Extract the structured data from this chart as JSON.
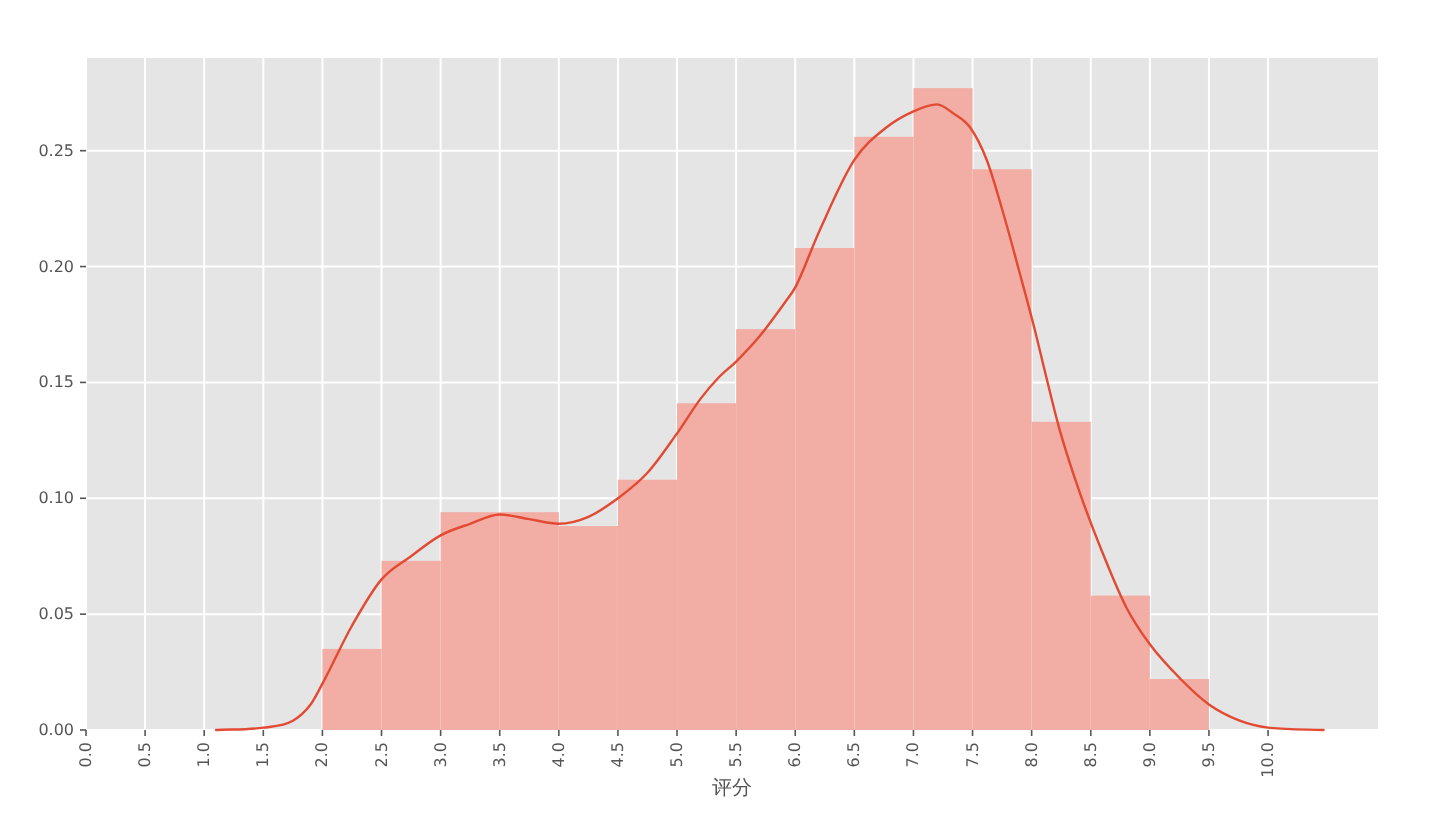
{
  "chart_data": {
    "type": "histogram",
    "xlabel": "评分",
    "xlim": [
      0,
      10.93
    ],
    "ylim": [
      0,
      0.29
    ],
    "xticks": [
      {
        "value": 0,
        "label": "0.0"
      },
      0.5,
      {
        "value": 1,
        "label": "1.0"
      },
      1.5,
      {
        "value": 2,
        "label": "2.0"
      },
      2.5,
      {
        "value": 3,
        "label": "3.0"
      },
      3.5,
      {
        "value": 4,
        "label": "4.0"
      },
      4.5,
      {
        "value": 5,
        "label": "5.0"
      },
      5.5,
      {
        "value": 6,
        "label": "6.0"
      },
      6.5,
      {
        "value": 7,
        "label": "7.0"
      },
      7.5,
      {
        "value": 8,
        "label": "8.0"
      },
      8.5,
      {
        "value": 9,
        "label": "9.0"
      },
      9.5,
      {
        "value": 10,
        "label": "10.0"
      }
    ],
    "yticks": [
      {
        "value": 0,
        "label": "0.00"
      },
      0.05,
      {
        "value": 0.1,
        "label": "0.10"
      },
      0.15,
      {
        "value": 0.2,
        "label": "0.20"
      },
      0.25
    ],
    "grid": true,
    "series": [
      {
        "type": "histogram",
        "color": "#f2aea5",
        "bins": [
          2.0,
          2.5,
          3.0,
          3.5,
          4.0,
          4.5,
          5.0,
          5.5,
          6.0,
          6.5,
          7.0,
          7.5,
          8.0,
          8.5,
          9.0,
          9.5
        ],
        "values": [
          0.035,
          0.073,
          0.094,
          0.094,
          0.088,
          0.108,
          0.141,
          0.173,
          0.208,
          0.256,
          0.277,
          0.242,
          0.133,
          0.058,
          0.022
        ]
      },
      {
        "type": "line",
        "color": "#e24a33",
        "x": [
          1.1,
          1.5,
          1.75,
          1.9,
          2.0,
          2.25,
          2.5,
          2.75,
          3.0,
          3.25,
          3.5,
          3.75,
          4.0,
          4.25,
          4.5,
          4.75,
          5.0,
          5.2,
          5.35,
          5.5,
          5.7,
          5.92,
          6.0,
          6.21,
          6.5,
          6.77,
          7.0,
          7.2,
          7.34,
          7.48,
          7.62,
          7.76,
          7.9,
          8.02,
          8.13,
          8.24,
          8.41,
          8.58,
          8.8,
          9.0,
          9.26,
          9.5,
          9.76,
          10.0,
          10.47
        ],
        "values": [
          0,
          0.001,
          0.004,
          0.011,
          0.02,
          0.045,
          0.065,
          0.075,
          0.084,
          0.089,
          0.093,
          0.091,
          0.089,
          0.092,
          0.1,
          0.111,
          0.128,
          0.143,
          0.152,
          0.159,
          0.17,
          0.185,
          0.191,
          0.216,
          0.246,
          0.26,
          0.267,
          0.27,
          0.266,
          0.26,
          0.246,
          0.223,
          0.197,
          0.174,
          0.151,
          0.129,
          0.102,
          0.079,
          0.053,
          0.037,
          0.022,
          0.011,
          0.004,
          0.001,
          0
        ]
      }
    ]
  }
}
